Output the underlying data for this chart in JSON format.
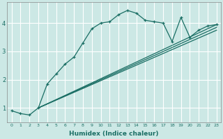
{
  "xlabel": "Humidex (Indice chaleur)",
  "background_color": "#cce8e5",
  "grid_color": "#b0ccc9",
  "line_color": "#1a6e64",
  "xlim": [
    -0.5,
    23.5
  ],
  "ylim": [
    0.5,
    4.75
  ],
  "yticks": [
    1,
    2,
    3,
    4
  ],
  "xticks": [
    0,
    1,
    2,
    3,
    4,
    5,
    6,
    7,
    8,
    9,
    10,
    11,
    12,
    13,
    14,
    15,
    16,
    17,
    18,
    19,
    20,
    21,
    22,
    23
  ],
  "curve_x": [
    0,
    1,
    2,
    3,
    4,
    5,
    6,
    7,
    8,
    9,
    10,
    11,
    12,
    13,
    14,
    15,
    16,
    17,
    18,
    19,
    20,
    21,
    22,
    23
  ],
  "curve_y": [
    0.9,
    0.8,
    0.75,
    1.0,
    1.85,
    2.2,
    2.55,
    2.8,
    3.3,
    3.8,
    4.0,
    4.05,
    4.3,
    4.45,
    4.35,
    4.1,
    4.05,
    4.0,
    3.35,
    4.2,
    3.5,
    3.75,
    3.9,
    3.95
  ],
  "line2_x": [
    3,
    23
  ],
  "line2_y": [
    1.0,
    3.95
  ],
  "line3_x": [
    3,
    23
  ],
  "line3_y": [
    1.0,
    3.85
  ],
  "line4_x": [
    3,
    23
  ],
  "line4_y": [
    1.0,
    3.75
  ]
}
